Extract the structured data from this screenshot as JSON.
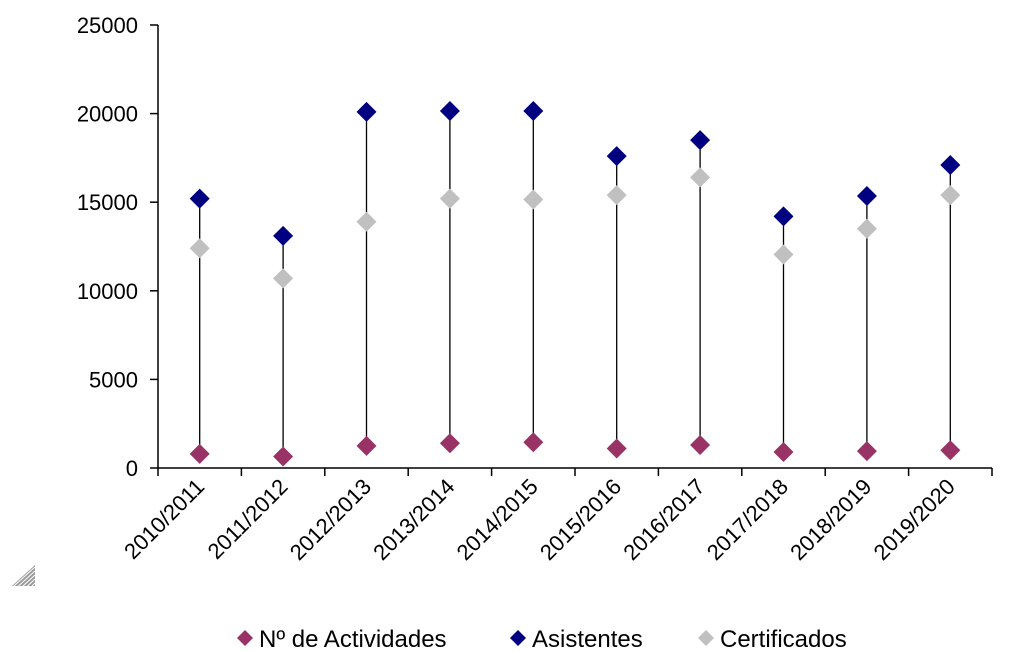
{
  "chart_data": {
    "type": "scatter",
    "categories": [
      "2010/2011",
      "2011/2012",
      "2012/2013",
      "2013/2014",
      "2014/2015",
      "2015/2016",
      "2016/2017",
      "2017/2018",
      "2018/2019",
      "2019/2020"
    ],
    "series": [
      {
        "name": "Nº de Actividades",
        "color": "#993366",
        "values": [
          800,
          650,
          1250,
          1400,
          1450,
          1100,
          1300,
          900,
          950,
          1000
        ]
      },
      {
        "name": "Asistentes",
        "color": "#000080",
        "values": [
          15200,
          13100,
          20100,
          20150,
          20150,
          17600,
          18500,
          14200,
          15350,
          17100
        ]
      },
      {
        "name": "Certificados",
        "color": "#C0C0C0",
        "values": [
          12400,
          10700,
          13900,
          15200,
          15150,
          15400,
          16400,
          12050,
          13500,
          15400
        ]
      }
    ],
    "ylim": [
      0,
      25000
    ],
    "yticks": [
      "0",
      "5000",
      "10000",
      "15000",
      "20000",
      "25000"
    ],
    "ytick_values": [
      0,
      5000,
      10000,
      15000,
      20000,
      25000
    ],
    "high_low_lines": true,
    "grid": false,
    "legend_position": "bottom",
    "marker": "diamond",
    "xlabel": "",
    "ylabel": "",
    "title": ""
  }
}
